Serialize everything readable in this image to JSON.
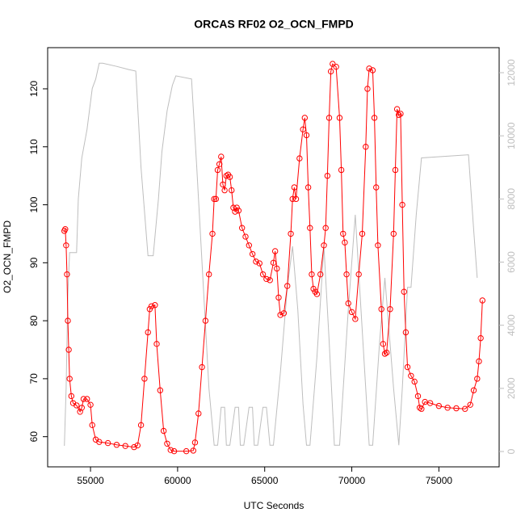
{
  "chart_data": {
    "type": "line",
    "title": "ORCAS RF02 O2_OCN_FMPD",
    "x_label": "UTC Seconds",
    "y_label": "O2_OCN_FMPD",
    "xlim": [
      52540,
      78460
    ],
    "xticks": [
      55000,
      60000,
      65000,
      70000,
      75000
    ],
    "ylim": [
      54.8,
      127.1
    ],
    "yticks": [
      60,
      70,
      80,
      90,
      100,
      110,
      120
    ],
    "y2lim": [
      -486,
      12793
    ],
    "y2ticks": [
      0,
      2000,
      4000,
      6000,
      8000,
      10000,
      12000
    ],
    "series": [
      {
        "color": "#bebebe",
        "axis": "y2",
        "x": [
          53500,
          53600,
          53700,
          53800,
          54200,
          54300,
          54500,
          54800,
          55100,
          55300,
          55500,
          55700,
          56500,
          57200,
          57600,
          57900,
          58300,
          58600,
          58900,
          59100,
          59400,
          59700,
          59900,
          60800,
          61100,
          61500,
          61800,
          62100,
          62300,
          62500,
          62700,
          62800,
          63000,
          63300,
          63500,
          63600,
          63800,
          64100,
          64300,
          64400,
          64600,
          64900,
          65100,
          65300,
          65500,
          65900,
          66300,
          66600,
          66900,
          67200,
          67400,
          67600,
          68000,
          68400,
          68700,
          69000,
          69300,
          69800,
          70200,
          70800,
          71000,
          71200,
          71600,
          71900,
          72400,
          72700,
          72900,
          73200,
          73400,
          73700,
          74000,
          76700,
          77000,
          77200
        ],
        "values": [
          180,
          2000,
          5000,
          6300,
          6300,
          8000,
          9300,
          10200,
          11500,
          11800,
          12300,
          12300,
          12200,
          12100,
          12050,
          9000,
          6200,
          6200,
          8000,
          9500,
          10800,
          11600,
          11900,
          11800,
          9000,
          5000,
          2000,
          200,
          200,
          1400,
          1400,
          200,
          200,
          1400,
          1400,
          200,
          200,
          1400,
          1400,
          200,
          200,
          1400,
          1400,
          200,
          200,
          2500,
          5200,
          6500,
          4500,
          1500,
          200,
          200,
          3000,
          6500,
          3500,
          200,
          200,
          4500,
          7500,
          2000,
          200,
          200,
          3500,
          5500,
          2000,
          200,
          2000,
          5200,
          5200,
          7500,
          9300,
          9400,
          7000,
          5500
        ]
      },
      {
        "color": "#ff0000",
        "x": [
          53500,
          53550,
          53600,
          53650,
          53700,
          53750,
          53800,
          53900,
          54000,
          54200,
          54400,
          54500,
          54600,
          54800,
          55000,
          55100,
          55300,
          55500,
          56000,
          56500,
          57000,
          57500,
          57700,
          57900,
          58100,
          58300,
          58400,
          58500,
          58700,
          58800,
          59000,
          59200,
          59400,
          59600,
          59800,
          60500,
          60900,
          61000,
          61200,
          61400,
          61600,
          61800,
          62000,
          62100,
          62200,
          62300,
          62400,
          62500,
          62600,
          62700,
          62800,
          62900,
          63000,
          63100,
          63200,
          63300,
          63400,
          63500,
          63700,
          63900,
          64100,
          64300,
          64500,
          64700,
          64900,
          65100,
          65300,
          65500,
          65600,
          65700,
          65800,
          65900,
          66100,
          66300,
          66500,
          66600,
          66700,
          66800,
          67000,
          67200,
          67300,
          67400,
          67500,
          67600,
          67700,
          67800,
          67900,
          68000,
          68200,
          68400,
          68500,
          68600,
          68700,
          68800,
          68900,
          69100,
          69300,
          69400,
          69500,
          69600,
          69700,
          69800,
          70000,
          70200,
          70400,
          70600,
          70800,
          70900,
          71000,
          71200,
          71300,
          71400,
          71500,
          71700,
          71800,
          71900,
          72000,
          72200,
          72400,
          72500,
          72600,
          72700,
          72800,
          72900,
          73000,
          73100,
          73200,
          73400,
          73600,
          73800,
          73900,
          74000,
          74200,
          74500,
          75000,
          75500,
          76000,
          76500,
          76800,
          77000,
          77200,
          77300,
          77400,
          77500
        ],
        "values": [
          95.5,
          95.8,
          93,
          88,
          80,
          75,
          70,
          67,
          65.8,
          65.4,
          64.3,
          65,
          66.5,
          66.5,
          65.5,
          62,
          59.5,
          59.1,
          58.9,
          58.6,
          58.4,
          58.2,
          58.5,
          62,
          70,
          78,
          82,
          82.5,
          82.7,
          76,
          68,
          61,
          58.8,
          57.7,
          57.5,
          57.5,
          57.6,
          59,
          64,
          72,
          80,
          88,
          95,
          101,
          101,
          106,
          107,
          108.3,
          103.5,
          102.5,
          105,
          105.2,
          104.8,
          102.5,
          99.5,
          98.8,
          99.5,
          99,
          96,
          94.5,
          93,
          91.5,
          90.2,
          89.9,
          88,
          87.2,
          87,
          90,
          92,
          89,
          84,
          81,
          81.3,
          86,
          95,
          101,
          103,
          101,
          108,
          113,
          115,
          112,
          103,
          96,
          88,
          85.5,
          85,
          84.6,
          88,
          93,
          96,
          105,
          115,
          123,
          124.3,
          123.8,
          115,
          106,
          95,
          93.5,
          88,
          83,
          81.5,
          80.3,
          88,
          95,
          110,
          120,
          123.5,
          123.2,
          115,
          103,
          93,
          82,
          76,
          74.3,
          74.5,
          82,
          95,
          106,
          116.5,
          115.5,
          115.7,
          100,
          85,
          78,
          72,
          70.5,
          69.5,
          67,
          65,
          64.8,
          66,
          65.8,
          65.3,
          65,
          64.9,
          64.8,
          65.5,
          68,
          70,
          73,
          77,
          83.5
        ]
      }
    ]
  }
}
